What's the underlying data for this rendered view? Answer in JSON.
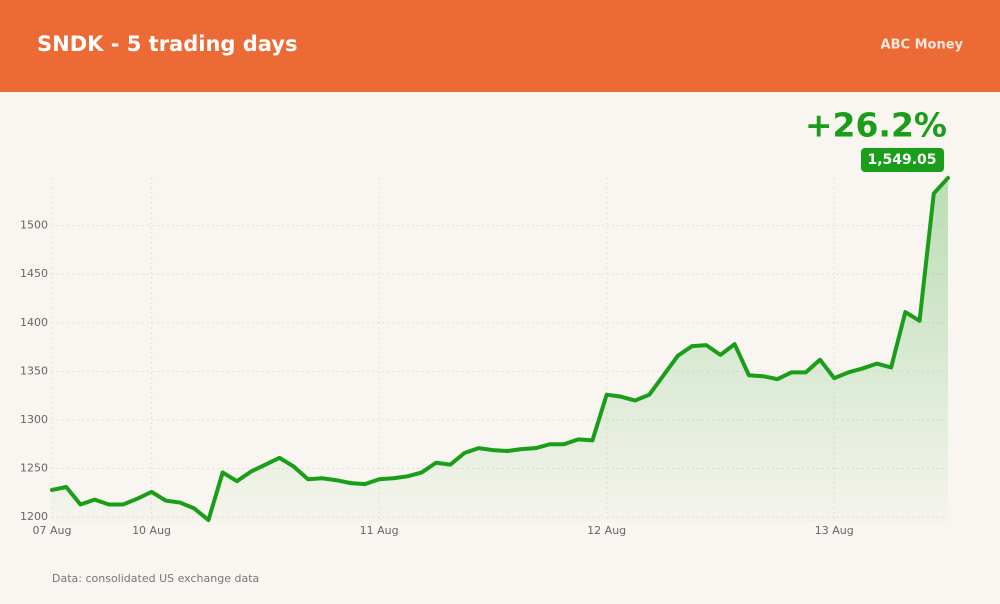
{
  "chart_data": {
    "type": "line",
    "title": "SNDK - 5 trading days",
    "brand": "ABC Money",
    "source": "Data: consolidated US exchange data",
    "annotations": [
      "+26.2%",
      "1,549.05"
    ],
    "x": [
      0,
      1,
      2,
      3,
      4,
      5,
      6,
      7,
      8,
      9,
      10,
      11,
      12,
      13,
      14,
      15,
      16,
      17,
      18,
      19,
      20,
      21,
      22,
      23,
      24,
      25,
      26,
      27,
      28,
      29,
      30,
      31,
      32,
      33,
      34,
      35,
      36,
      37,
      38,
      39,
      40,
      41,
      42,
      43,
      44,
      45,
      46,
      47,
      48,
      49,
      50,
      51,
      52,
      53,
      54,
      55,
      56,
      57,
      58,
      59,
      60,
      61,
      62,
      63
    ],
    "series": [
      {
        "name": "SNDK",
        "color": "#1a9e1a",
        "values": [
          1228,
          1231,
          1213,
          1218,
          1213,
          1213,
          1219,
          1226,
          1217,
          1215,
          1209,
          1197,
          1246,
          1237,
          1247,
          1254,
          1261,
          1252,
          1239,
          1240,
          1238,
          1235,
          1234,
          1239,
          1240,
          1242,
          1246,
          1256,
          1254,
          1266,
          1271,
          1269,
          1268,
          1270,
          1271,
          1275,
          1275,
          1280,
          1279,
          1326,
          1324,
          1320,
          1326,
          1346,
          1366,
          1376,
          1377,
          1367,
          1378,
          1346,
          1345,
          1342,
          1349,
          1349,
          1362,
          1343,
          1349,
          1353,
          1358,
          1354,
          1411,
          1402,
          1533,
          1549.05
        ]
      }
    ],
    "xlim": [
      0,
      63
    ],
    "xticks": [
      {
        "value": 0,
        "label": "07 Aug"
      },
      {
        "value": 7,
        "label": "10 Aug"
      },
      {
        "value": 23,
        "label": "11 Aug"
      },
      {
        "value": 39,
        "label": "12 Aug"
      },
      {
        "value": 55,
        "label": "13 Aug"
      }
    ],
    "ylim": [
      1195,
      1550
    ],
    "yticks": [
      1200,
      1250,
      1300,
      1350,
      1400,
      1450,
      1500
    ],
    "grid": true
  }
}
